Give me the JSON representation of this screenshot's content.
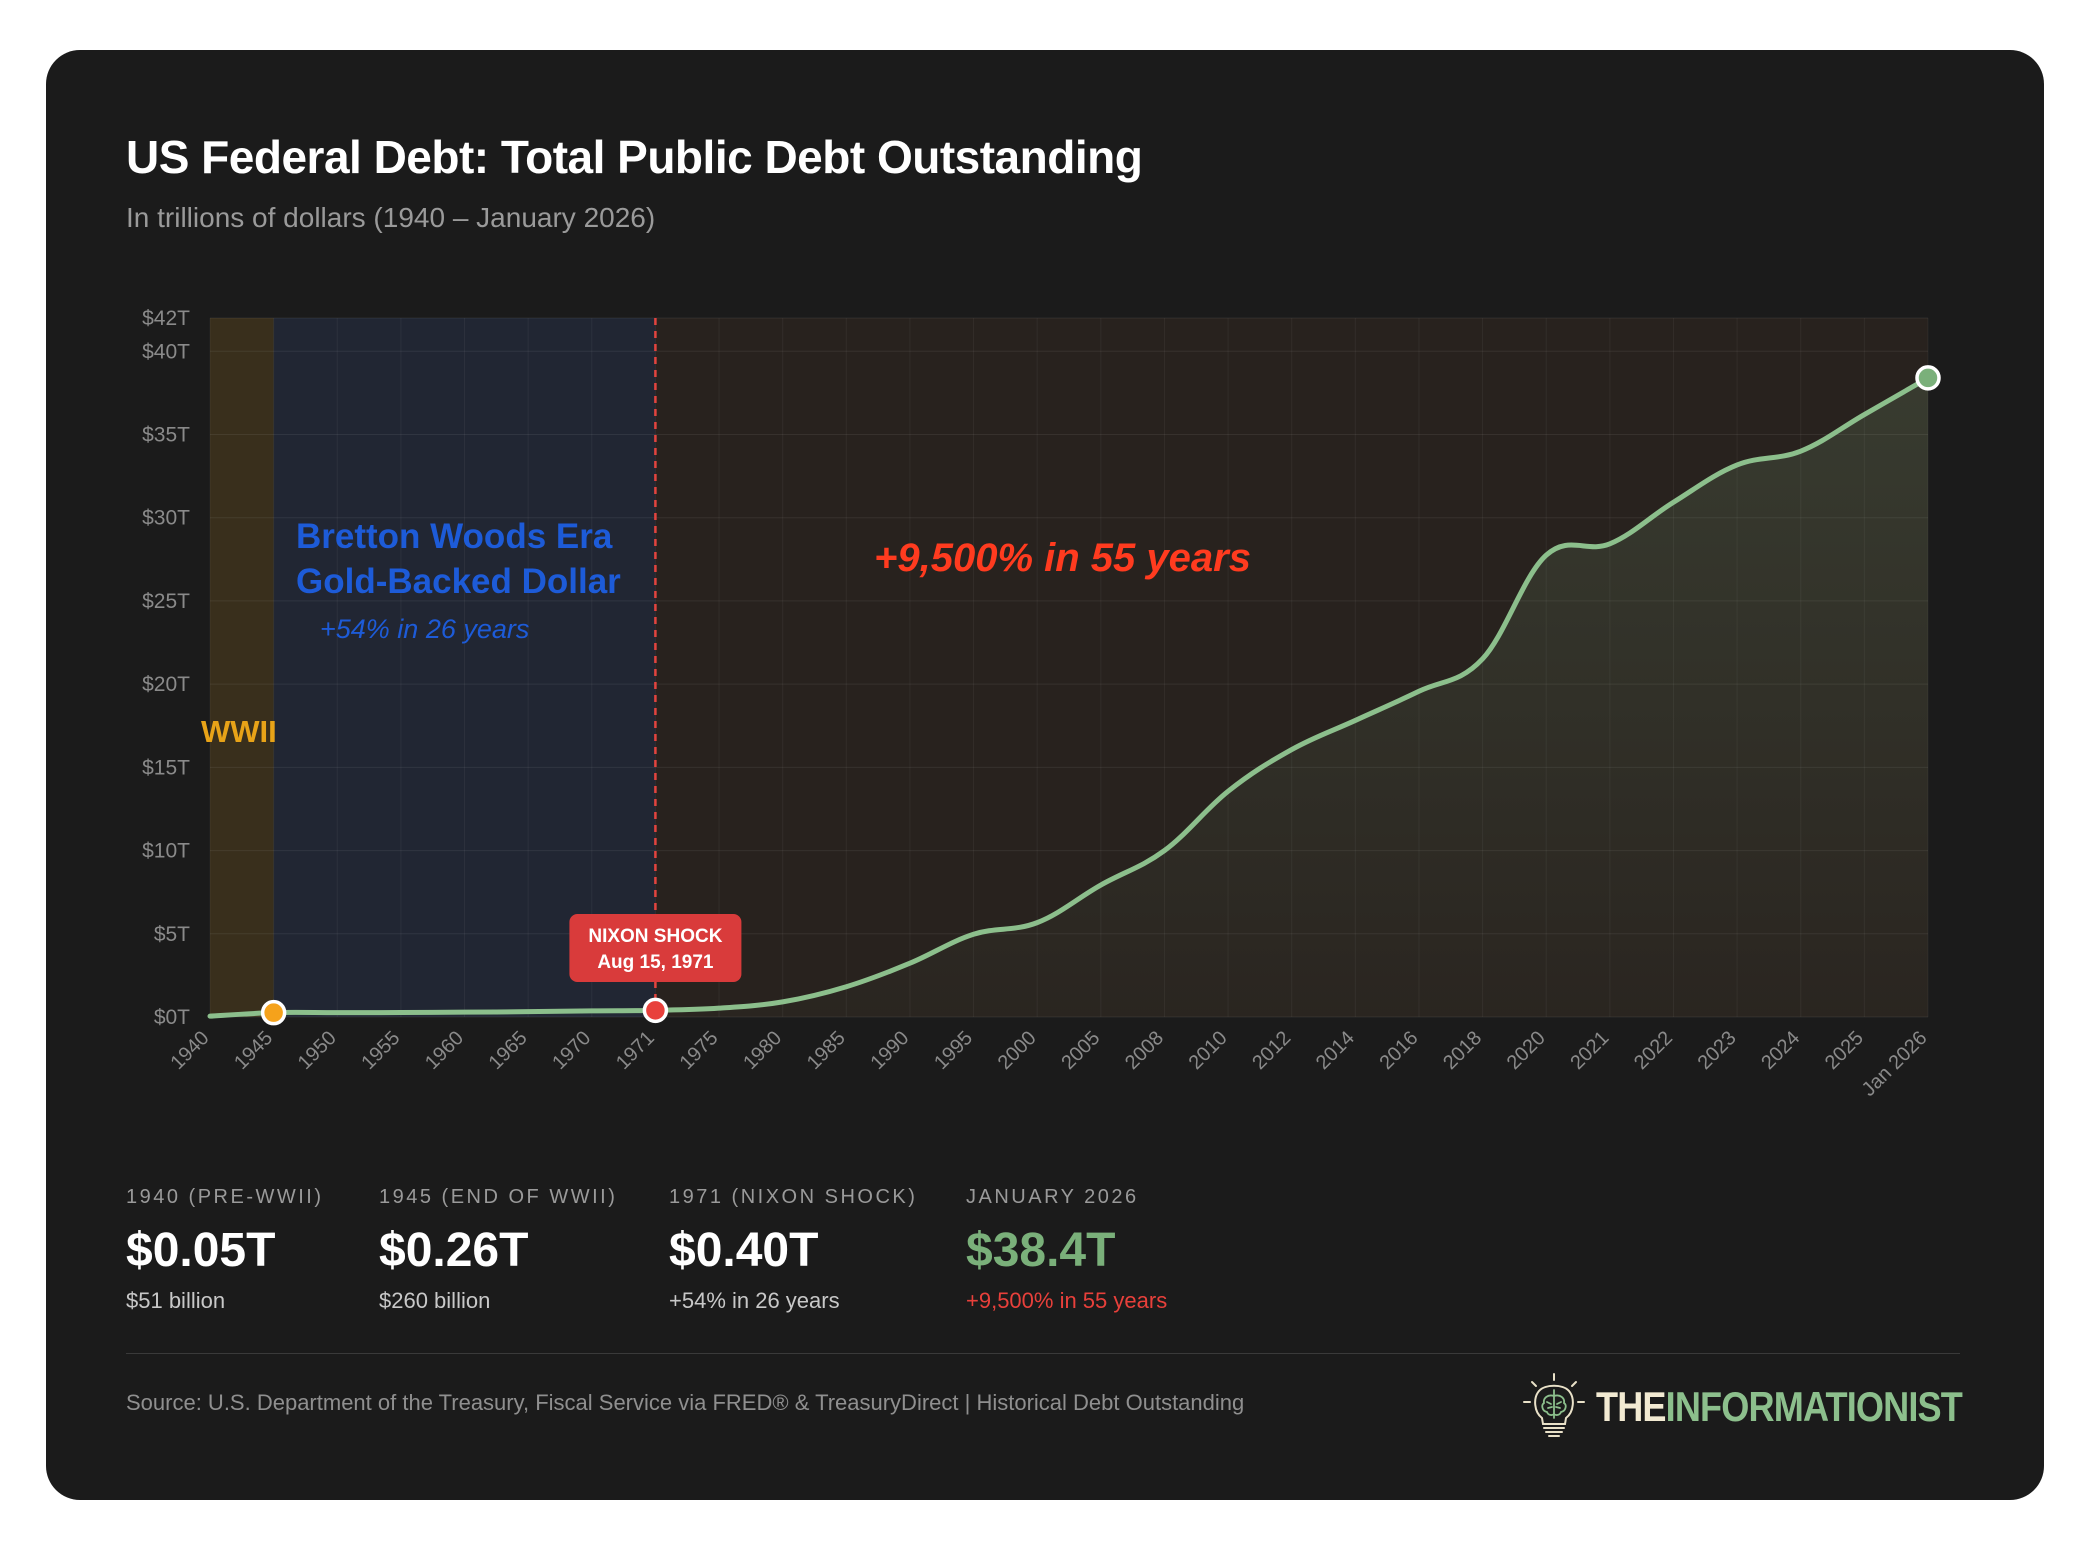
{
  "header": {
    "title": "US Federal Debt: Total Public Debt Outstanding",
    "subtitle": "In trillions of dollars (1940 – January 2026)"
  },
  "chart_data": {
    "type": "area",
    "title": "US Federal Debt: Total Public Debt Outstanding",
    "subtitle": "In trillions of dollars (1940 – January 2026)",
    "xlabel": "",
    "ylabel": "",
    "ylim": [
      0,
      42
    ],
    "y_ticks": [
      0,
      5,
      10,
      15,
      20,
      25,
      30,
      35,
      40,
      42
    ],
    "y_tick_labels": [
      "$0T",
      "$5T",
      "$10T",
      "$15T",
      "$20T",
      "$25T",
      "$30T",
      "$35T",
      "$40T",
      "$42T"
    ],
    "grid": true,
    "categories": [
      "1940",
      "1945",
      "1950",
      "1955",
      "1960",
      "1965",
      "1970",
      "1971",
      "1975",
      "1980",
      "1985",
      "1990",
      "1995",
      "2000",
      "2005",
      "2008",
      "2010",
      "2012",
      "2014",
      "2016",
      "2018",
      "2020",
      "2021",
      "2022",
      "2023",
      "2024",
      "2025",
      "Jan 2026"
    ],
    "series": [
      {
        "values": [
          0.05,
          0.26,
          0.26,
          0.27,
          0.29,
          0.32,
          0.37,
          0.4,
          0.53,
          0.91,
          1.82,
          3.23,
          4.97,
          5.67,
          7.93,
          10.0,
          13.56,
          16.07,
          17.82,
          19.57,
          21.52,
          27.75,
          28.43,
          30.93,
          33.17,
          34.0,
          36.2,
          38.4
        ],
        "color": "#8cbf8c"
      }
    ],
    "bands": [
      {
        "from": "1940",
        "to": "1945",
        "label": "WWII",
        "color": "#e8a318"
      },
      {
        "from": "1945",
        "to": "1971",
        "label": "Bretton Woods Era",
        "label2": "Gold-Backed Dollar",
        "note": "+54% in 26 years",
        "color": "#1d5bd8"
      },
      {
        "from": "1971",
        "to": "Jan 2026",
        "note": "+9,500% in 55 years",
        "color": "#ff3b1f"
      }
    ],
    "markers": [
      {
        "x": "1945",
        "y": 0.26,
        "color": "#f5a21b"
      },
      {
        "x": "1971",
        "y": 0.4,
        "color": "#e8403b"
      },
      {
        "x": "Jan 2026",
        "y": 38.4,
        "color": "#7ab07a"
      }
    ],
    "vline": {
      "x": "1971",
      "color": "#e2443f"
    },
    "callout": {
      "x": "1971",
      "line1": "NIXON SHOCK",
      "line2": "Aug 15, 1971",
      "color": "#d93b3b"
    }
  },
  "stats": [
    {
      "label": "1940 (PRE-WWII)",
      "value": "$0.05T",
      "note": "$51 billion"
    },
    {
      "label": "1945 (END OF WWII)",
      "value": "$0.26T",
      "note": "$260 billion"
    },
    {
      "label": "1971 (NIXON SHOCK)",
      "value": "$0.40T",
      "note": "+54% in 26 years"
    },
    {
      "label": "JANUARY 2026",
      "value": "$38.4T",
      "note": "+9,500% in 55 years",
      "value_color": "#7ab07a",
      "note_color": "#e8403b"
    }
  ],
  "footer": {
    "source": "Source: U.S. Department of the Treasury, Fiscal Service via FRED® & TreasuryDirect | Historical Debt Outstanding",
    "brand_the": "THE",
    "brand_name": "INFORMATIONIST",
    "logo_icon": "lightbulb-brain-icon"
  }
}
